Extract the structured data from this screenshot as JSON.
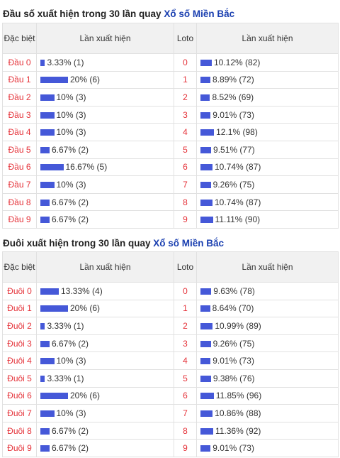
{
  "section1": {
    "title_prefix": "Đầu số xuất hiện trong 30 lần quay",
    "title_link": "Xổ số Miền Bắc",
    "header": {
      "col1": "Đặc biệt",
      "col2": "Lần xuất hiện",
      "col3": "Loto",
      "col4": "Lần xuất hiện"
    },
    "rows": [
      {
        "label": "Đầu 0",
        "pct": 3.33,
        "text": "3.33% (1)",
        "loto": "0",
        "loto_pct": 10.12,
        "loto_text": "10.12% (82)"
      },
      {
        "label": "Đầu 1",
        "pct": 20,
        "text": "20% (6)",
        "loto": "1",
        "loto_pct": 8.89,
        "loto_text": "8.89% (72)"
      },
      {
        "label": "Đầu 2",
        "pct": 10,
        "text": "10% (3)",
        "loto": "2",
        "loto_pct": 8.52,
        "loto_text": "8.52% (69)"
      },
      {
        "label": "Đầu 3",
        "pct": 10,
        "text": "10% (3)",
        "loto": "3",
        "loto_pct": 9.01,
        "loto_text": "9.01% (73)"
      },
      {
        "label": "Đầu 4",
        "pct": 10,
        "text": "10% (3)",
        "loto": "4",
        "loto_pct": 12.1,
        "loto_text": "12.1% (98)"
      },
      {
        "label": "Đầu 5",
        "pct": 6.67,
        "text": "6.67% (2)",
        "loto": "5",
        "loto_pct": 9.51,
        "loto_text": "9.51% (77)"
      },
      {
        "label": "Đầu 6",
        "pct": 16.67,
        "text": "16.67% (5)",
        "loto": "6",
        "loto_pct": 10.74,
        "loto_text": "10.74% (87)"
      },
      {
        "label": "Đầu 7",
        "pct": 10,
        "text": "10% (3)",
        "loto": "7",
        "loto_pct": 9.26,
        "loto_text": "9.26% (75)"
      },
      {
        "label": "Đầu 8",
        "pct": 6.67,
        "text": "6.67% (2)",
        "loto": "8",
        "loto_pct": 10.74,
        "loto_text": "10.74% (87)"
      },
      {
        "label": "Đầu 9",
        "pct": 6.67,
        "text": "6.67% (2)",
        "loto": "9",
        "loto_pct": 11.11,
        "loto_text": "11.11% (90)"
      }
    ]
  },
  "section2": {
    "title_prefix": "Đuôi xuất hiện trong 30 lần quay",
    "title_link": "Xổ số Miền Bắc",
    "header": {
      "col1": "Đặc biệt",
      "col2": "Lần xuất hiện",
      "col3": "Loto",
      "col4": "Lần xuất hiện"
    },
    "rows": [
      {
        "label": "Đuôi 0",
        "pct": 13.33,
        "text": "13.33% (4)",
        "loto": "0",
        "loto_pct": 9.63,
        "loto_text": "9.63% (78)"
      },
      {
        "label": "Đuôi 1",
        "pct": 20,
        "text": "20% (6)",
        "loto": "1",
        "loto_pct": 8.64,
        "loto_text": "8.64% (70)"
      },
      {
        "label": "Đuôi 2",
        "pct": 3.33,
        "text": "3.33% (1)",
        "loto": "2",
        "loto_pct": 10.99,
        "loto_text": "10.99% (89)"
      },
      {
        "label": "Đuôi 3",
        "pct": 6.67,
        "text": "6.67% (2)",
        "loto": "3",
        "loto_pct": 9.26,
        "loto_text": "9.26% (75)"
      },
      {
        "label": "Đuôi 4",
        "pct": 10,
        "text": "10% (3)",
        "loto": "4",
        "loto_pct": 9.01,
        "loto_text": "9.01% (73)"
      },
      {
        "label": "Đuôi 5",
        "pct": 3.33,
        "text": "3.33% (1)",
        "loto": "5",
        "loto_pct": 9.38,
        "loto_text": "9.38% (76)"
      },
      {
        "label": "Đuôi 6",
        "pct": 20,
        "text": "20% (6)",
        "loto": "6",
        "loto_pct": 11.85,
        "loto_text": "11.85% (96)"
      },
      {
        "label": "Đuôi 7",
        "pct": 10,
        "text": "10% (3)",
        "loto": "7",
        "loto_pct": 10.86,
        "loto_text": "10.86% (88)"
      },
      {
        "label": "Đuôi 8",
        "pct": 6.67,
        "text": "6.67% (2)",
        "loto": "8",
        "loto_pct": 11.36,
        "loto_text": "11.36% (92)"
      },
      {
        "label": "Đuôi 9",
        "pct": 6.67,
        "text": "6.67% (2)",
        "loto": "9",
        "loto_pct": 9.01,
        "loto_text": "9.01% (73)"
      }
    ]
  },
  "colors": {
    "label_red": "#e5333a",
    "bar_blue": "#4558d8",
    "link_blue": "#1a3fb0",
    "header_bg": "#f1f1f1"
  }
}
